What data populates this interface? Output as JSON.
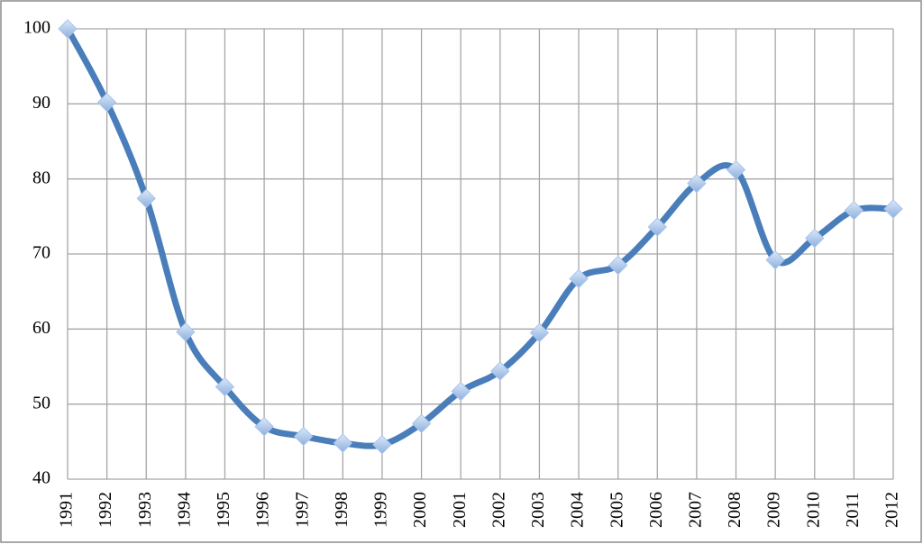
{
  "chart_data": {
    "type": "line",
    "categories": [
      "1991",
      "1992",
      "1993",
      "1994",
      "1995",
      "1996",
      "1997",
      "1998",
      "1999",
      "2000",
      "2001",
      "2002",
      "2003",
      "2004",
      "2005",
      "2006",
      "2007",
      "2008",
      "2009",
      "2010",
      "2011",
      "2012"
    ],
    "values": [
      100,
      90.2,
      77.4,
      59.6,
      52.3,
      47.0,
      45.7,
      44.8,
      44.6,
      47.4,
      51.7,
      54.4,
      59.5,
      66.7,
      68.5,
      73.6,
      79.4,
      81.2,
      69.2,
      72.1,
      75.8,
      76.0
    ],
    "color": "#4a7ebb",
    "marker_color": "#a9c4eb",
    "ylim": [
      40,
      100
    ],
    "yticks": [
      40,
      50,
      60,
      70,
      80,
      90,
      100
    ],
    "grid": true,
    "smooth": true
  }
}
